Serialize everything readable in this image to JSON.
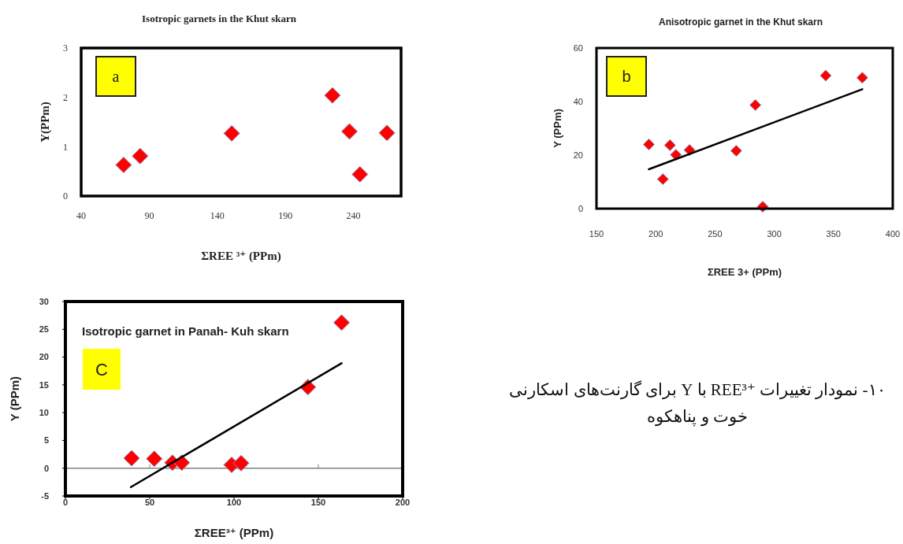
{
  "chart_data": [
    {
      "type": "scatter",
      "title": "Isotropic garnets in the Khut skarn",
      "xlabel": "ΣREE ³⁺ (PPm)",
      "ylabel": "Y(PPm)",
      "annotations": [
        "a"
      ],
      "xlim": [
        40,
        275
      ],
      "xticks": [
        40,
        90,
        140,
        190,
        240
      ],
      "ylim": [
        0,
        3
      ],
      "yticks": [
        0,
        1,
        2,
        3
      ],
      "marker": "diamond",
      "series": [
        {
          "type": "scatter",
          "color": "#ff0000",
          "x": [
            71.2,
            83.3,
            150.6,
            224.6,
            237.1,
            244.8,
            264.6
          ],
          "values": [
            0.63,
            0.81,
            1.27,
            2.04,
            1.31,
            0.44,
            1.28
          ]
        }
      ]
    },
    {
      "type": "scatter",
      "title": "Anisotropic garnet in the Khut skarn",
      "xlabel": "ΣREE 3+ (PPm)",
      "ylabel": "Y (PPm)",
      "annotations": [
        "b"
      ],
      "xlim": [
        150,
        400
      ],
      "xticks": [
        150,
        200,
        250,
        300,
        350,
        400
      ],
      "ylim": [
        0,
        60
      ],
      "yticks": [
        0,
        20,
        40,
        60
      ],
      "marker": "diamond",
      "series": [
        {
          "type": "scatter",
          "color": "#ff0000",
          "x": [
            194.2,
            206.0,
            212.0,
            217.0,
            228.5,
            267.9,
            284.1,
            290.3,
            343.4,
            374.3
          ],
          "values": [
            24.0,
            11.0,
            23.7,
            20.1,
            21.9,
            21.6,
            38.7,
            0.7,
            49.7,
            48.9
          ]
        },
        {
          "type": "line",
          "color": "#000000",
          "marker": "none",
          "line_style": "solid",
          "x": [
            194.2,
            374.3
          ],
          "values": [
            14.7,
            44.6
          ]
        }
      ]
    },
    {
      "type": "scatter",
      "title": "Isotropic garnet in Panah- Kuh skarn",
      "xlabel": "ΣREE³⁺ (PPm)",
      "ylabel": "Y (PPm)",
      "annotations": [
        "C"
      ],
      "xlim": [
        0,
        200
      ],
      "xticks": [
        0,
        50,
        100,
        150,
        200
      ],
      "ylim": [
        -5,
        30
      ],
      "yticks": [
        -5,
        0,
        5,
        10,
        15,
        20,
        25,
        30
      ],
      "marker": "diamond",
      "ref_lines": [
        {
          "axis": "y",
          "value": 0,
          "color": "#808080"
        }
      ],
      "series": [
        {
          "type": "scatter",
          "color": "#ff0000",
          "x": [
            39.3,
            52.7,
            63.5,
            69.0,
            98.6,
            104.2,
            143.8,
            163.8
          ],
          "values": [
            1.8,
            1.7,
            1.0,
            1.0,
            0.6,
            0.9,
            14.6,
            26.2
          ]
        },
        {
          "type": "line",
          "color": "#000000",
          "marker": "none",
          "line_style": "solid",
          "x": [
            38.8,
            163.8
          ],
          "values": [
            -3.4,
            18.9
          ]
        }
      ]
    },
    {
      "type": "other",
      "annotations": [
        "۱۰- نمودار تغییرات REE³⁺ با Y برای گارنت‌های اسکارنی خوت و پناهکوه"
      ]
    }
  ]
}
